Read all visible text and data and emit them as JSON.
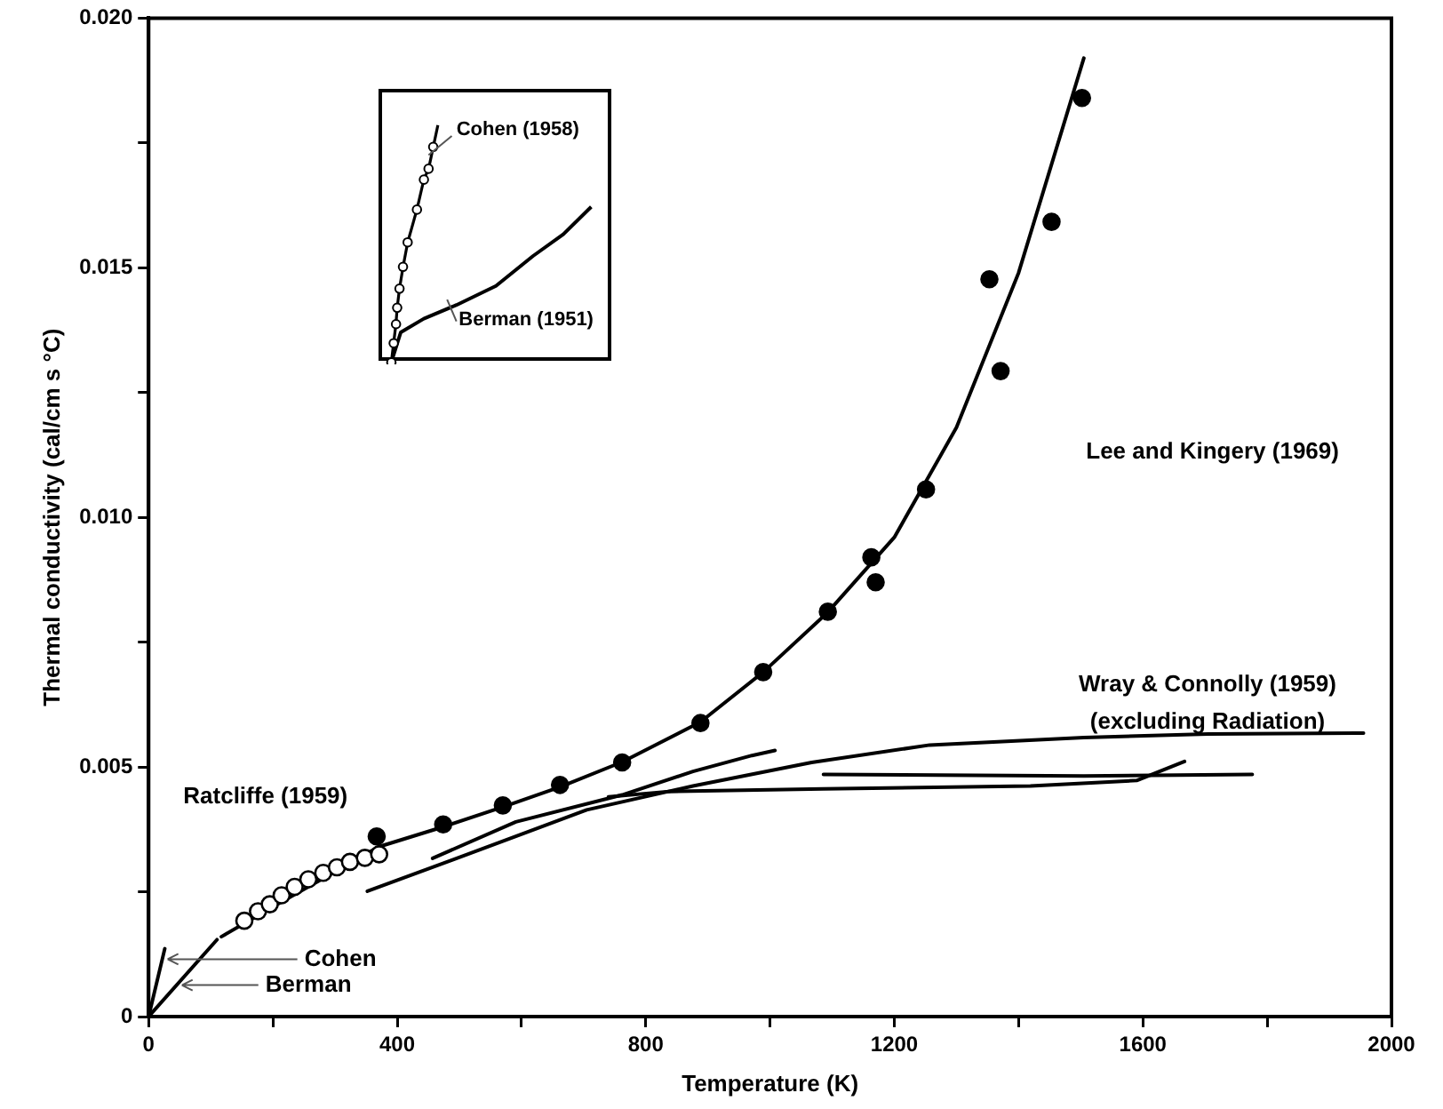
{
  "chart_data": [
    {
      "type": "line",
      "xlabel": "Temperature (K)",
      "ylabel": "Thermal conductivity (cal/cm s °C)",
      "xlim": [
        0,
        2000
      ],
      "ylim": [
        0,
        0.02
      ],
      "xticks": [
        0,
        {
          "value": 200,
          "label": null
        },
        400,
        {
          "value": 600,
          "label": null
        },
        800,
        {
          "value": 1000,
          "label": null
        },
        1200,
        {
          "value": 1400,
          "label": null
        },
        1600,
        {
          "value": 1800,
          "label": null
        },
        2000
      ],
      "yticks": [
        0,
        {
          "value": 0.0025,
          "label": null
        },
        0.005,
        {
          "value": 0.0075,
          "label": null
        },
        {
          "value": 0.01,
          "label": "0.010"
        },
        {
          "value": 0.0125,
          "label": null
        },
        0.015,
        {
          "value": 0.0175,
          "label": null
        },
        {
          "value": 0.02,
          "label": "0.020"
        }
      ],
      "grid": false,
      "legend": false,
      "series": [
        {
          "type": "line",
          "color": "#000000",
          "x": [
            0,
            26
          ],
          "values": [
            0,
            0.00136
          ]
        },
        {
          "type": "line",
          "color": "#000000",
          "x": [
            0,
            110
          ],
          "values": [
            0,
            0.00154
          ]
        },
        {
          "type": "scatter",
          "marker": "circle",
          "color": "#ffffff",
          "x": [
            154,
            176,
            195,
            214,
            235,
            257,
            281,
            303,
            324,
            348,
            371
          ],
          "values": [
            0.00192,
            0.00211,
            0.00225,
            0.00243,
            0.0026,
            0.00275,
            0.00288,
            0.00299,
            0.0031,
            0.00318,
            0.00325
          ]
        },
        {
          "type": "scatter",
          "marker": "circle",
          "color": "#000000",
          "x": [
            367,
            474,
            570,
            662,
            762,
            888,
            989,
            1093,
            1163,
            1170,
            1251,
            1353,
            1371,
            1453,
            1502
          ],
          "values": [
            0.00361,
            0.00385,
            0.00423,
            0.00464,
            0.00509,
            0.00588,
            0.0069,
            0.00811,
            0.0092,
            0.0087,
            0.01056,
            0.01477,
            0.01293,
            0.01592,
            0.0184
          ]
        },
        {
          "type": "line",
          "color": "#000000",
          "x": [
            117,
            200,
            300,
            370,
            474,
            570,
            662,
            762,
            888,
            989,
            1093,
            1200,
            1300,
            1400,
            1505
          ],
          "values": [
            0.0016,
            0.0022,
            0.0029,
            0.0034,
            0.0038,
            0.0042,
            0.0046,
            0.0051,
            0.0059,
            0.0069,
            0.0081,
            0.0096,
            0.0118,
            0.0149,
            0.0192
          ]
        },
        {
          "type": "line",
          "color": "#000000",
          "x": [
            457,
            591,
            762,
            876,
            971,
            1008
          ],
          "values": [
            0.00317,
            0.0039,
            0.00444,
            0.00491,
            0.00523,
            0.00533
          ]
        },
        {
          "type": "line",
          "color": "#000000",
          "x": [
            352,
            591,
            705,
            876,
            1067,
            1257,
            1505,
            1705,
            1955
          ],
          "values": [
            0.00251,
            0.00361,
            0.00414,
            0.00462,
            0.00509,
            0.00544,
            0.00559,
            0.00566,
            0.00568
          ]
        },
        {
          "type": "line",
          "color": "#000000",
          "x": [
            740,
            838,
            1086,
            1419,
            1590,
            1667
          ],
          "values": [
            0.0044,
            0.00451,
            0.00456,
            0.00462,
            0.00473,
            0.00511
          ]
        },
        {
          "type": "line",
          "color": "#000000",
          "x": [
            1086,
            1505,
            1776
          ],
          "values": [
            0.00485,
            0.00482,
            0.00485
          ]
        }
      ],
      "annotations": [
        "Ratcliffe (1959)",
        "Lee and Kingery (1969)",
        "Wray & Connolly (1959)",
        "(excluding Radiation)",
        {
          "text": "Cohen",
          "x": 22,
          "y": 0.00115
        },
        {
          "text": "Berman",
          "x": 45,
          "y": 0.00063
        }
      ]
    },
    {
      "type": "other",
      "annotations": [
        "Cohen (1958)",
        "Berman (1951)"
      ]
    }
  ]
}
